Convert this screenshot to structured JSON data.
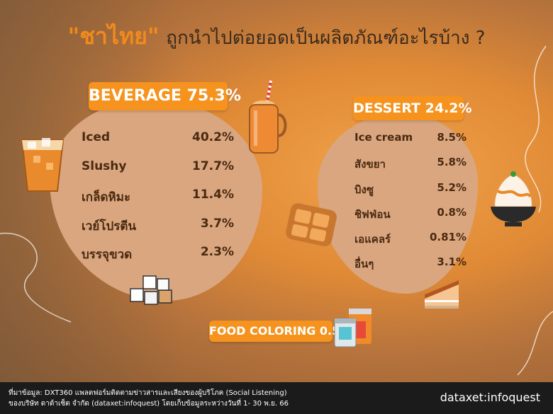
{
  "title": {
    "highlight": "\"ชาไทย\"",
    "rest": "ถูกนำไปต่อยอดเป็นผลิตภัณฑ์อะไรบ้าง ?"
  },
  "chart_data": {
    "type": "table",
    "categories": [
      {
        "name": "BEVERAGE 75.3%",
        "items": [
          {
            "label": "Iced",
            "value": "40.2%"
          },
          {
            "label": "Slushy",
            "value": "17.7%"
          },
          {
            "label": "เกล็ดหิมะ",
            "value": "11.4%"
          },
          {
            "label": "เวย์โปรตีน",
            "value": "3.7%"
          },
          {
            "label": "บรรจุขวด",
            "value": "2.3%"
          }
        ]
      },
      {
        "name": "DESSERT 24.2%",
        "items": [
          {
            "label": "Ice cream",
            "value": "8.5%"
          },
          {
            "label": "สังขยา",
            "value": "5.8%"
          },
          {
            "label": "บิงซู",
            "value": "5.2%"
          },
          {
            "label": "ชิฟฟ่อน",
            "value": "0.8%"
          },
          {
            "label": "เอแคลร์",
            "value": "0.81%"
          },
          {
            "label": "อื่นๆ",
            "value": "3.1%"
          }
        ]
      },
      {
        "name": "FOOD COLORING 0.5 %",
        "items": []
      }
    ]
  },
  "footer": {
    "source_line1": "ที่มาข้อมูล: DXT360 แพลตฟอร์มติดตามข่าวสารและเสียงของผู้บริโภค (Social Listening)",
    "source_line2": "ของบริษัท ดาต้าเซ็ต จำกัด (dataxet:infoquest) โดยเก็บข้อมูลระหว่างวันที่ 1- 30 พ.ย. 66",
    "brand": "dataxet:infoquest"
  },
  "colors": {
    "accent": "#f5931e",
    "blob": "#d9a680",
    "text": "#4a2a10",
    "footer": "#1b1b1b"
  },
  "icons": [
    "iced-tea-glass-icon",
    "mason-jar-drink-icon",
    "sugar-cubes-icon",
    "toast-bread-icon",
    "bingsu-bowl-icon",
    "cake-slice-icon",
    "food-coloring-cans-icon"
  ]
}
